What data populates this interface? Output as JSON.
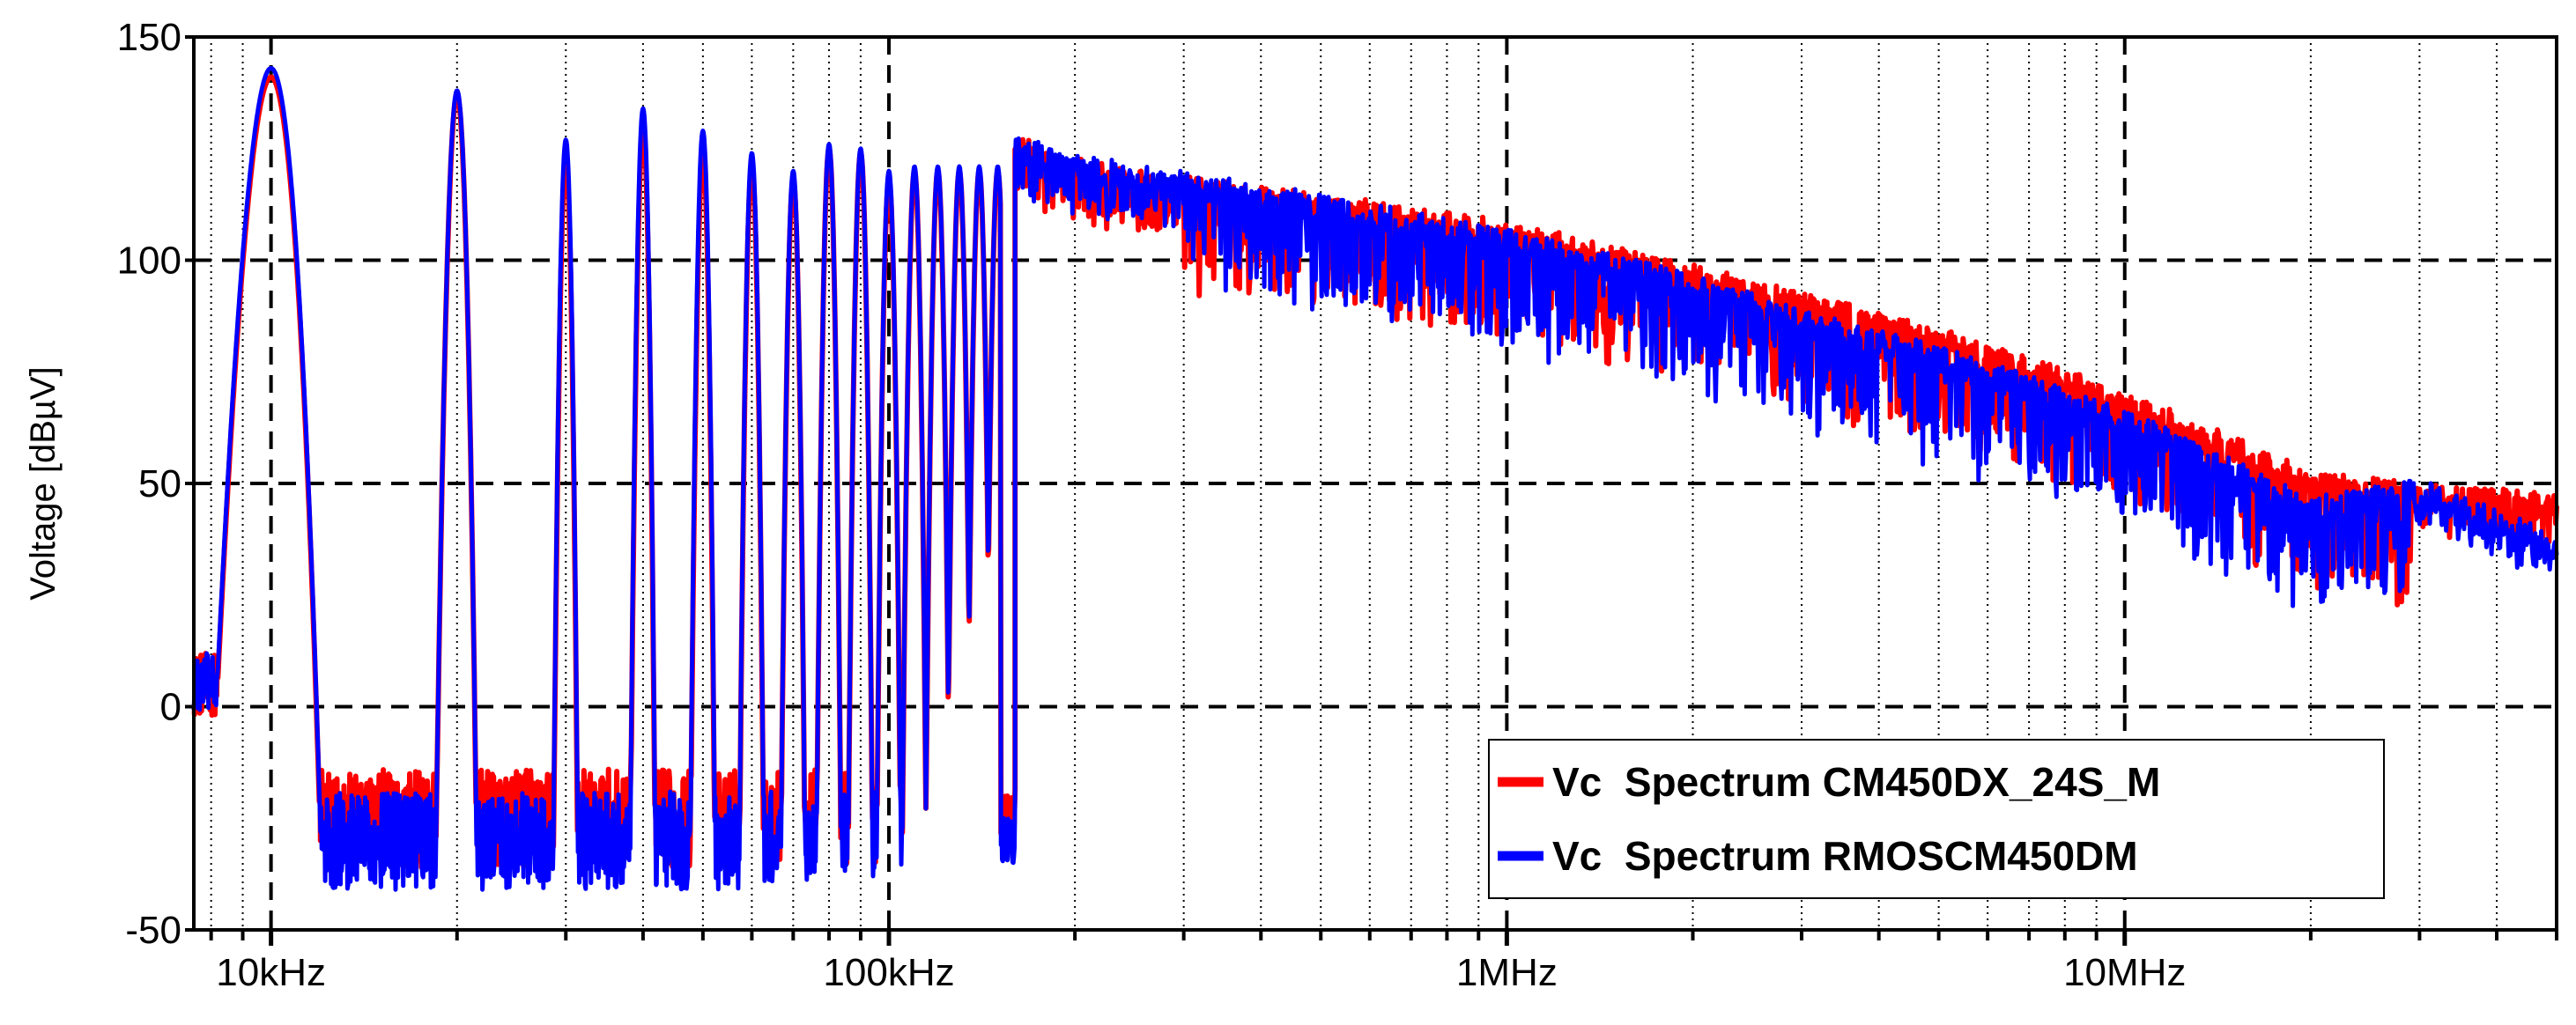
{
  "chart_data": {
    "type": "line",
    "title": "",
    "xlabel": "",
    "ylabel": "Voltage [dBµV]",
    "xscale": "log",
    "xlim": [
      7500,
      50000000
    ],
    "ylim": [
      -50,
      150
    ],
    "yticks": [
      -50,
      0,
      50,
      100,
      150
    ],
    "ytick_labels": [
      "-50",
      "0",
      "50",
      "100",
      "150"
    ],
    "xticks": [
      10000,
      100000,
      1000000,
      10000000
    ],
    "xtick_labels": [
      "10kHz",
      "100kHz",
      "1MHz",
      "10MHz"
    ],
    "grid": true,
    "legend_position": "bottom-right",
    "colors": {
      "series_1": "#ff0000",
      "series_2": "#0000ff",
      "axis": "#000000",
      "grid": "#000000",
      "background": "#ffffff"
    },
    "series": [
      {
        "name": "Vc  Spectrum CM450DX_24S_M",
        "color": "#ff0000",
        "peaks": [
          {
            "x": 10000,
            "y": 141
          },
          {
            "x": 20000,
            "y": 137
          },
          {
            "x": 30000,
            "y": 122
          },
          {
            "x": 40000,
            "y": 129
          },
          {
            "x": 50000,
            "y": 123
          },
          {
            "x": 60000,
            "y": 121
          },
          {
            "x": 70000,
            "y": 118
          },
          {
            "x": 80000,
            "y": 125
          },
          {
            "x": 90000,
            "y": 124
          },
          {
            "x": 100000,
            "y": 118
          },
          {
            "x": 110000,
            "y": 120
          },
          {
            "x": 120000,
            "y": 120
          },
          {
            "x": 130000,
            "y": 120
          },
          {
            "x": 140000,
            "y": 120
          },
          {
            "x": 150000,
            "y": 120
          }
        ],
        "floor_low": -25,
        "envelope": {
          "x": [
            160000,
            200000,
            300000,
            500000,
            1000000,
            2000000,
            3000000,
            5000000,
            10000000,
            20000000,
            30000000,
            50000000
          ],
          "y": [
            125,
            120,
            116,
            112,
            106,
            96,
            90,
            82,
            68,
            50,
            47,
            45
          ]
        }
      },
      {
        "name": "Vc  Spectrum RMOSCM450DM",
        "color": "#0000ff",
        "peaks": [
          {
            "x": 10000,
            "y": 143
          },
          {
            "x": 20000,
            "y": 138
          },
          {
            "x": 30000,
            "y": 127
          },
          {
            "x": 40000,
            "y": 134
          },
          {
            "x": 50000,
            "y": 129
          },
          {
            "x": 60000,
            "y": 124
          },
          {
            "x": 70000,
            "y": 120
          },
          {
            "x": 80000,
            "y": 126
          },
          {
            "x": 90000,
            "y": 125
          },
          {
            "x": 100000,
            "y": 120
          },
          {
            "x": 110000,
            "y": 121
          },
          {
            "x": 120000,
            "y": 121
          },
          {
            "x": 130000,
            "y": 121
          },
          {
            "x": 140000,
            "y": 121
          },
          {
            "x": 150000,
            "y": 121
          }
        ],
        "floor_low": -30,
        "envelope": {
          "x": [
            160000,
            200000,
            300000,
            500000,
            1000000,
            2000000,
            3000000,
            5000000,
            10000000,
            20000000,
            30000000,
            50000000
          ],
          "y": [
            125,
            121,
            117,
            112,
            104,
            94,
            86,
            78,
            64,
            44,
            48,
            36
          ]
        }
      }
    ]
  }
}
